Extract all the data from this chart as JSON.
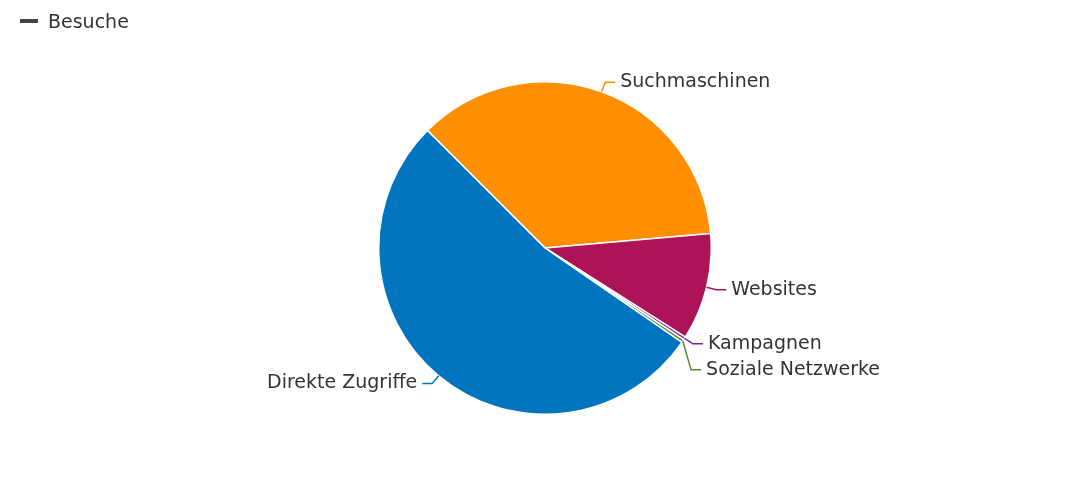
{
  "chart_data": {
    "type": "pie",
    "categories": [
      "Suchmaschinen",
      "Websites",
      "Kampagnen",
      "Soziale Netzwerke",
      "Direkte Zugriffe"
    ],
    "series": [
      {
        "name": "Besuche",
        "color": "#444444",
        "values": [
          36.1,
          10.4,
          0.3,
          0.3,
          52.9
        ]
      }
    ],
    "colors": [
      "#ff8f00",
      "#ad1457",
      "#7b1fa2",
      "#558b2f",
      "#0074bf"
    ],
    "legend": "top left"
  }
}
